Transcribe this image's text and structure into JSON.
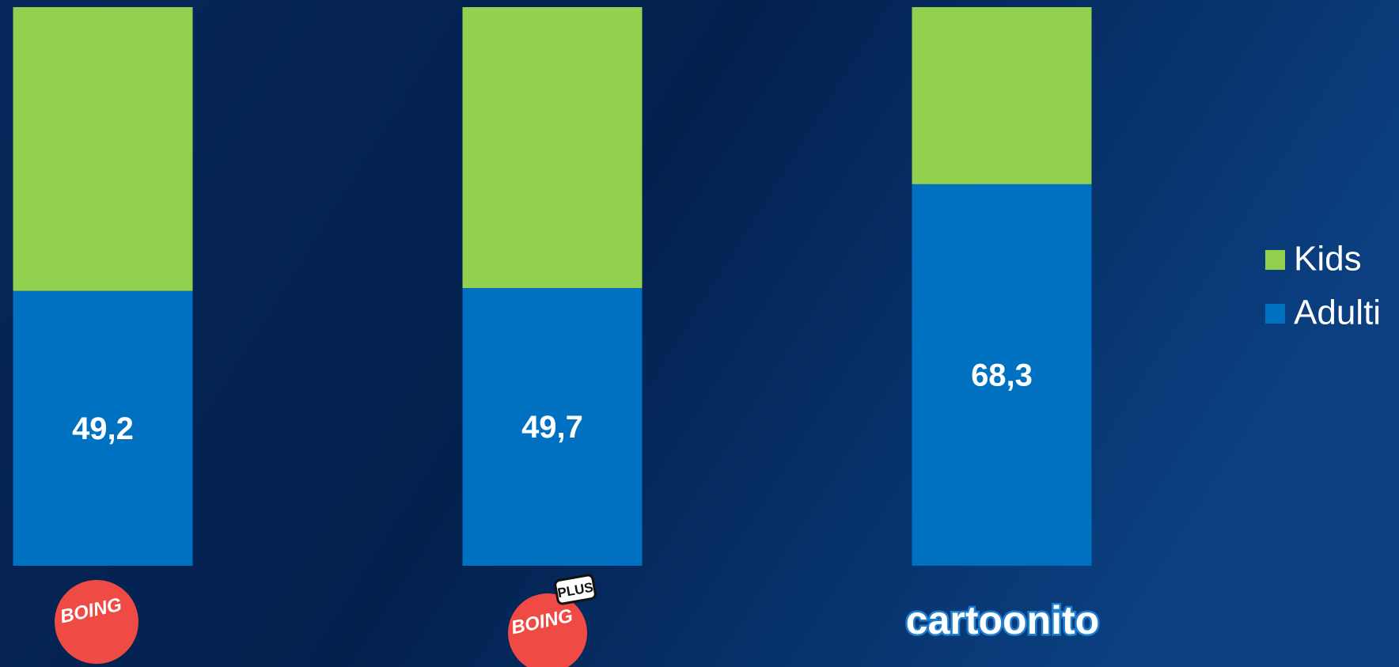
{
  "chart_data": {
    "type": "stacked_bar",
    "categories": [
      "BOING",
      "BOING",
      "cartoonito"
    ],
    "annotations": [
      "PLUS"
    ],
    "series": [
      {
        "name": "Adulti",
        "color": "#0070c0",
        "values": [
          49.2,
          49.7,
          68.3
        ],
        "value_labels": [
          "49,2",
          "49,7",
          "68,3"
        ]
      },
      {
        "name": "Kids",
        "color": "#92d050",
        "values": [
          50.8,
          50.3,
          31.7
        ]
      }
    ],
    "ylim": [
      0,
      100
    ],
    "legend": "right"
  }
}
